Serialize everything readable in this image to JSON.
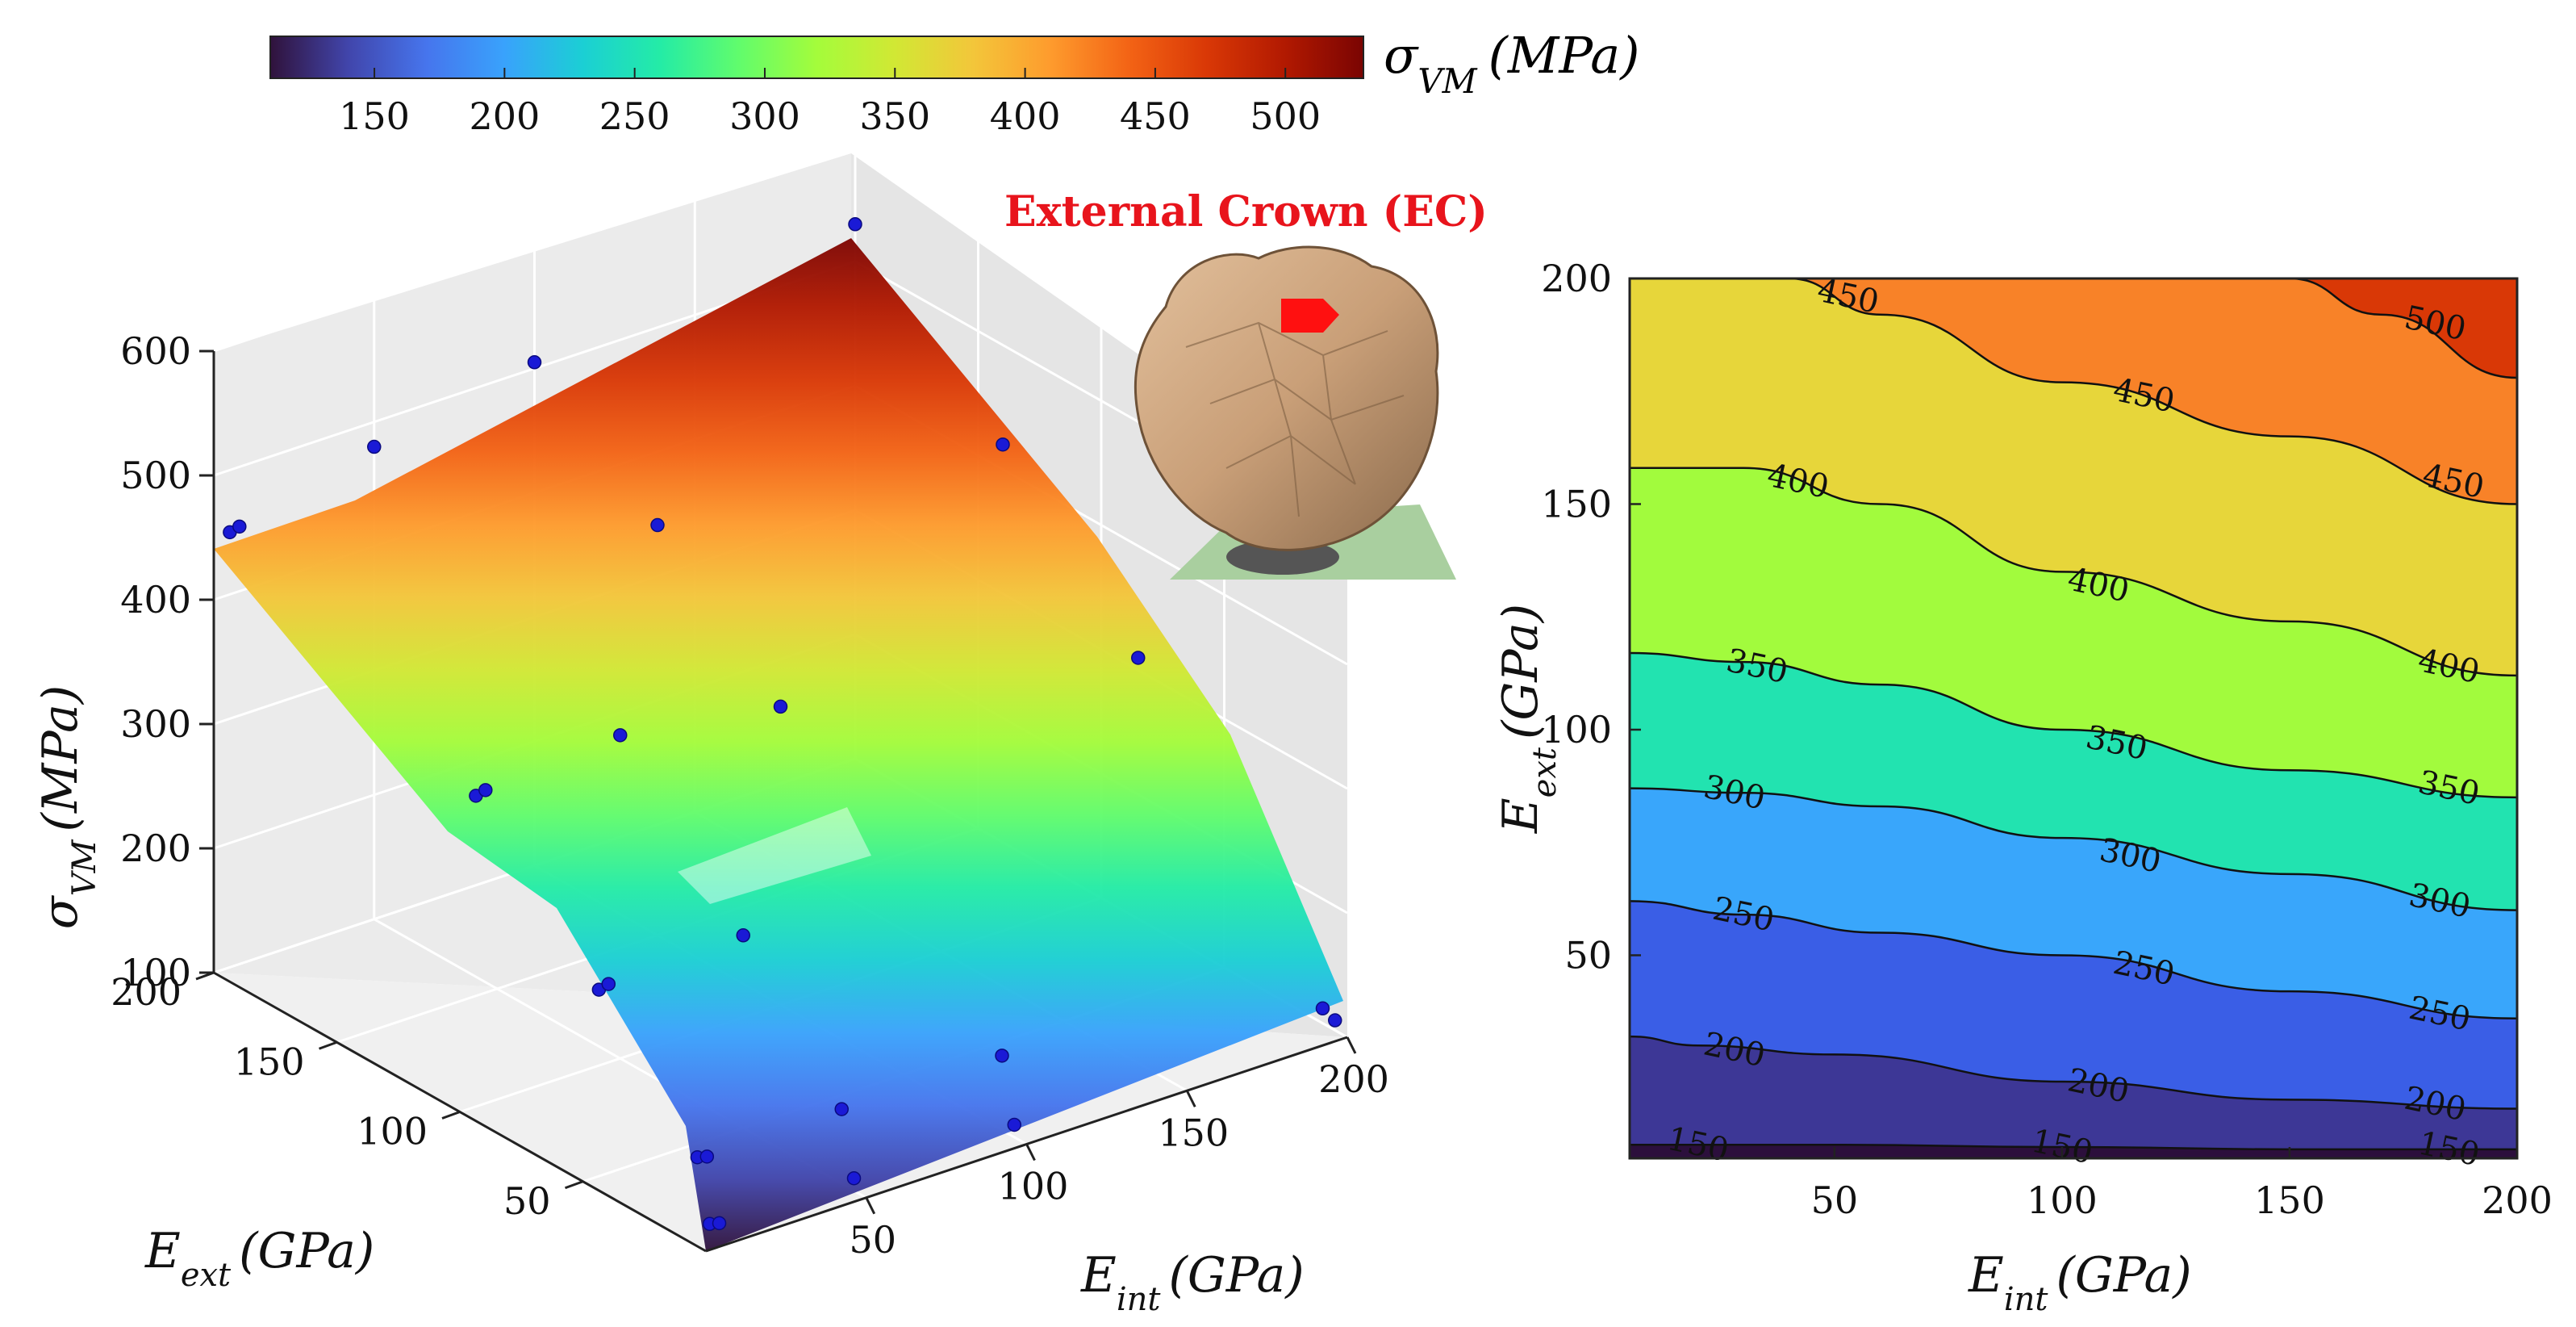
{
  "colorbar": {
    "label_symbol": "σ",
    "label_sub": "VM",
    "label_unit": "(MPa)",
    "range": [
      110,
      530
    ],
    "ticks": [
      "150",
      "200",
      "250",
      "300",
      "350",
      "400",
      "450",
      "500"
    ],
    "tick_values": [
      150,
      200,
      250,
      300,
      350,
      400,
      450,
      500
    ]
  },
  "colormap": [
    "#30123b",
    "#4145ab",
    "#4675ed",
    "#39a2fc",
    "#1bcfd4",
    "#24eca6",
    "#61fc6c",
    "#a4fc3b",
    "#d1e834",
    "#f3c63a",
    "#fe9b2d",
    "#f36315",
    "#d93806",
    "#b11901",
    "#7a0402"
  ],
  "inset": {
    "title": "External Crown (EC)",
    "description_icon": "tooth-crown-model"
  },
  "chart_data": [
    {
      "type": "surface",
      "title": "",
      "xlabel_symbol": "E",
      "xlabel_sub": "int",
      "xlabel_unit": "(GPa)",
      "ylabel_symbol": "E",
      "ylabel_sub": "ext",
      "ylabel_unit": "(GPa)",
      "zlabel_symbol": "σ",
      "zlabel_sub": "VM",
      "zlabel_unit": "(MPa)",
      "x_ticks": [
        "50",
        "100",
        "150",
        "200"
      ],
      "x_tick_values": [
        50,
        100,
        150,
        200
      ],
      "y_ticks": [
        "50",
        "100",
        "150",
        "200"
      ],
      "y_tick_values": [
        50,
        100,
        150,
        200
      ],
      "z_ticks": [
        "100",
        "200",
        "300",
        "400",
        "500",
        "600"
      ],
      "z_tick_values": [
        100,
        200,
        300,
        400,
        500,
        600
      ],
      "xlim": [
        5,
        205
      ],
      "ylim": [
        5,
        205
      ],
      "zlim": [
        100,
        600
      ],
      "sample_points": [
        {
          "x": 5,
          "y": 200,
          "z": 450
        },
        {
          "x": 8,
          "y": 200,
          "z": 452
        },
        {
          "x": 50,
          "y": 200,
          "z": 480
        },
        {
          "x": 100,
          "y": 200,
          "z": 505
        },
        {
          "x": 200,
          "y": 200,
          "z": 530
        },
        {
          "x": 200,
          "y": 140,
          "z": 420
        },
        {
          "x": 200,
          "y": 85,
          "z": 310
        },
        {
          "x": 200,
          "y": 10,
          "z": 112
        },
        {
          "x": 200,
          "y": 5,
          "z": 108
        },
        {
          "x": 5,
          "y": 5,
          "z": 112
        },
        {
          "x": 8,
          "y": 5,
          "z": 110
        },
        {
          "x": 5,
          "y": 10,
          "z": 160
        },
        {
          "x": 8,
          "y": 10,
          "z": 158
        },
        {
          "x": 50,
          "y": 5,
          "z": 110
        },
        {
          "x": 50,
          "y": 10,
          "z": 160
        },
        {
          "x": 100,
          "y": 5,
          "z": 110
        },
        {
          "x": 100,
          "y": 10,
          "z": 160
        },
        {
          "x": 5,
          "y": 100,
          "z": 350
        },
        {
          "x": 8,
          "y": 100,
          "z": 352
        },
        {
          "x": 5,
          "y": 50,
          "z": 250
        },
        {
          "x": 8,
          "y": 50,
          "z": 252
        },
        {
          "x": 50,
          "y": 100,
          "z": 360
        },
        {
          "x": 100,
          "y": 150,
          "z": 430
        },
        {
          "x": 100,
          "y": 100,
          "z": 340
        },
        {
          "x": 50,
          "y": 50,
          "z": 255
        }
      ]
    },
    {
      "type": "contour",
      "title": "",
      "xlabel_symbol": "E",
      "xlabel_sub": "int",
      "xlabel_unit": "(GPa)",
      "ylabel_symbol": "E",
      "ylabel_sub": "ext",
      "ylabel_unit": "(GPa)",
      "xlim": [
        5,
        200
      ],
      "ylim": [
        5,
        200
      ],
      "x_ticks": [
        "50",
        "100",
        "150",
        "200"
      ],
      "x_tick_values": [
        50,
        100,
        150,
        200
      ],
      "y_ticks": [
        "50",
        "100",
        "150",
        "200"
      ],
      "y_tick_values": [
        50,
        100,
        150,
        200
      ],
      "levels": [
        {
          "value": 150,
          "label": "150",
          "color": "#3d3796",
          "points": [
            [
              5,
              8
            ],
            [
              50,
              8
            ],
            [
              100,
              7.5
            ],
            [
              150,
              7
            ],
            [
              200,
              7
            ]
          ],
          "label_at": [
            [
              20,
              8
            ],
            [
              100,
              7.5
            ],
            [
              185,
              7
            ]
          ]
        },
        {
          "value": 200,
          "label": "200",
          "color": "#3a5ee6",
          "points": [
            [
              5,
              32
            ],
            [
              20,
              30
            ],
            [
              50,
              28
            ],
            [
              100,
              22
            ],
            [
              150,
              18
            ],
            [
              200,
              16
            ]
          ],
          "label_at": [
            [
              28,
              29
            ],
            [
              108,
              21
            ],
            [
              182,
              17
            ]
          ]
        },
        {
          "value": 250,
          "label": "250",
          "color": "#39a6fb",
          "points": [
            [
              5,
              62
            ],
            [
              30,
              59
            ],
            [
              60,
              55
            ],
            [
              100,
              50
            ],
            [
              150,
              42
            ],
            [
              200,
              36
            ]
          ],
          "label_at": [
            [
              30,
              59
            ],
            [
              118,
              47
            ],
            [
              183,
              37
            ]
          ]
        },
        {
          "value": 300,
          "label": "300",
          "color": "#22e3b0",
          "points": [
            [
              5,
              87
            ],
            [
              30,
              86
            ],
            [
              60,
              83
            ],
            [
              100,
              76
            ],
            [
              150,
              68
            ],
            [
              200,
              60
            ]
          ],
          "label_at": [
            [
              28,
              86
            ],
            [
              115,
              72
            ],
            [
              183,
              62
            ]
          ]
        },
        {
          "value": 350,
          "label": "350",
          "color": "#a2fb3d",
          "points": [
            [
              5,
              117
            ],
            [
              30,
              115
            ],
            [
              60,
              110
            ],
            [
              100,
              100
            ],
            [
              150,
              91
            ],
            [
              200,
              85
            ]
          ],
          "label_at": [
            [
              33,
              114
            ],
            [
              112,
              97
            ],
            [
              185,
              87
            ]
          ]
        },
        {
          "value": 400,
          "label": "400",
          "color": "#e7d63a",
          "points": [
            [
              5,
              158
            ],
            [
              30,
              158
            ],
            [
              60,
              150
            ],
            [
              100,
              135
            ],
            [
              150,
              124
            ],
            [
              200,
              112
            ]
          ],
          "label_at": [
            [
              42,
              155
            ],
            [
              108,
              132
            ],
            [
              185,
              114
            ]
          ]
        },
        {
          "value": 450,
          "label": "450",
          "color": "#f88228",
          "points": [
            [
              5,
              200
            ],
            [
              40,
              200
            ],
            [
              60,
              192
            ],
            [
              100,
              177
            ],
            [
              150,
              165
            ],
            [
              200,
              150
            ]
          ],
          "label_at": [
            [
              53,
              196
            ],
            [
              118,
              174
            ],
            [
              186,
              155
            ]
          ]
        },
        {
          "value": 500,
          "label": "500",
          "color": "#d93806",
          "points": [
            [
              150,
              200
            ],
            [
              170,
              192
            ],
            [
              200,
              178
            ]
          ],
          "label_at": [
            [
              182,
              190
            ]
          ]
        }
      ],
      "fill_colors": [
        "#2c0f3c",
        "#3d3796",
        "#3a5ee6",
        "#39a6fb",
        "#22e3b0",
        "#a2fb3d",
        "#e7d63a",
        "#f88228",
        "#d93806",
        "#7a0402"
      ]
    }
  ]
}
